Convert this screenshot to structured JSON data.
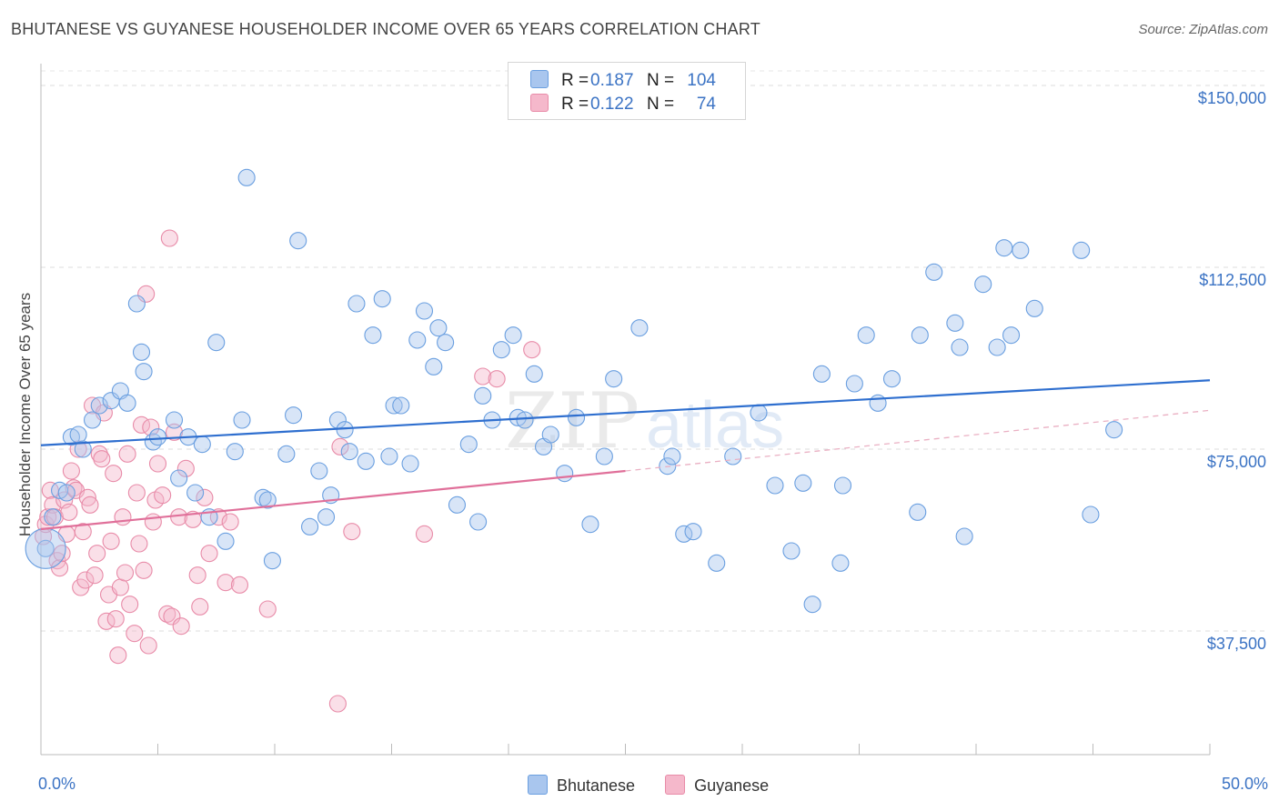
{
  "title": "BHUTANESE VS GUYANESE HOUSEHOLDER INCOME OVER 65 YEARS CORRELATION CHART",
  "source": "Source: ZipAtlas.com",
  "watermark": {
    "zip": "ZIP",
    "atlas": "atlas"
  },
  "legend_top": [
    {
      "r_label": "R =",
      "r_value": "0.187",
      "n_label": "N =",
      "n_value": "104",
      "color": "#a9c6ee"
    },
    {
      "r_label": "R =",
      "r_value": "0.122",
      "n_label": "N =",
      "n_value": "74",
      "color": "#f5b8cb"
    }
  ],
  "legend_bottom": [
    {
      "label": "Bhutanese",
      "color": "#a9c6ee"
    },
    {
      "label": "Guyanese",
      "color": "#f5b8cb"
    }
  ],
  "chart_data": {
    "type": "scatter",
    "title": "BHUTANESE VS GUYANESE HOUSEHOLDER INCOME OVER 65 YEARS CORRELATION CHART",
    "xlabel": "",
    "ylabel": "Householder Income Over 65 years",
    "xlim": [
      0,
      50
    ],
    "ylim": [
      12000,
      156000
    ],
    "x_tick_labels": [
      "0.0%",
      "50.0%"
    ],
    "y_ticks": [
      37500,
      75000,
      112500,
      150000
    ],
    "y_tick_labels": [
      "$37,500",
      "$75,000",
      "$112,500",
      "$150,000"
    ],
    "grid": true,
    "legend_placement": "top-center and bottom",
    "series": [
      {
        "name": "Bhutanese",
        "color": "#6a9fe0",
        "fill": "#a9c6ee",
        "trend": {
          "x": [
            0,
            50
          ],
          "y": [
            75800,
            89200
          ],
          "color": "#2f6fcf"
        },
        "points": [
          [
            0.2,
            54500
          ],
          [
            0.5,
            61000
          ],
          [
            0.8,
            66500
          ],
          [
            1.1,
            66000
          ],
          [
            1.3,
            77500
          ],
          [
            1.6,
            78000
          ],
          [
            1.8,
            75000
          ],
          [
            2.2,
            81000
          ],
          [
            2.5,
            84000
          ],
          [
            3.0,
            85000
          ],
          [
            3.4,
            87000
          ],
          [
            3.7,
            84500
          ],
          [
            4.1,
            105000
          ],
          [
            4.3,
            95000
          ],
          [
            4.4,
            91000
          ],
          [
            4.8,
            76500
          ],
          [
            5.0,
            77500
          ],
          [
            5.7,
            81000
          ],
          [
            5.9,
            69000
          ],
          [
            6.3,
            77500
          ],
          [
            6.6,
            66000
          ],
          [
            6.9,
            76000
          ],
          [
            7.2,
            61000
          ],
          [
            7.5,
            97000
          ],
          [
            7.9,
            56000
          ],
          [
            8.3,
            74500
          ],
          [
            8.6,
            81000
          ],
          [
            8.8,
            131000
          ],
          [
            9.5,
            65000
          ],
          [
            9.7,
            64500
          ],
          [
            9.9,
            52000
          ],
          [
            10.5,
            74000
          ],
          [
            10.8,
            82000
          ],
          [
            11.0,
            118000
          ],
          [
            11.5,
            59000
          ],
          [
            11.9,
            70500
          ],
          [
            12.2,
            61000
          ],
          [
            12.4,
            65500
          ],
          [
            12.7,
            81000
          ],
          [
            13.0,
            79000
          ],
          [
            13.2,
            74500
          ],
          [
            13.5,
            105000
          ],
          [
            13.9,
            72500
          ],
          [
            14.2,
            98500
          ],
          [
            14.6,
            106000
          ],
          [
            14.9,
            73500
          ],
          [
            15.1,
            84000
          ],
          [
            15.4,
            84000
          ],
          [
            15.8,
            72000
          ],
          [
            16.1,
            97500
          ],
          [
            16.4,
            103500
          ],
          [
            16.8,
            92000
          ],
          [
            17.0,
            100000
          ],
          [
            17.3,
            97000
          ],
          [
            17.8,
            63500
          ],
          [
            18.3,
            76000
          ],
          [
            18.7,
            60000
          ],
          [
            18.9,
            86000
          ],
          [
            19.3,
            81000
          ],
          [
            19.7,
            95500
          ],
          [
            20.2,
            98500
          ],
          [
            20.4,
            81500
          ],
          [
            20.7,
            81000
          ],
          [
            21.1,
            90500
          ],
          [
            21.5,
            75500
          ],
          [
            21.8,
            78000
          ],
          [
            22.4,
            70000
          ],
          [
            22.9,
            81500
          ],
          [
            23.5,
            59500
          ],
          [
            24.1,
            73500
          ],
          [
            24.5,
            89500
          ],
          [
            25.6,
            100000
          ],
          [
            26.8,
            71500
          ],
          [
            27.0,
            73500
          ],
          [
            27.5,
            57500
          ],
          [
            27.9,
            58000
          ],
          [
            28.9,
            51500
          ],
          [
            29.6,
            73500
          ],
          [
            30.7,
            82500
          ],
          [
            31.4,
            67500
          ],
          [
            32.1,
            54000
          ],
          [
            32.6,
            68000
          ],
          [
            33.0,
            43000
          ],
          [
            33.4,
            90500
          ],
          [
            34.2,
            51500
          ],
          [
            34.3,
            67500
          ],
          [
            34.8,
            88500
          ],
          [
            35.3,
            98500
          ],
          [
            35.8,
            84500
          ],
          [
            36.4,
            89500
          ],
          [
            37.5,
            62000
          ],
          [
            37.6,
            98500
          ],
          [
            38.2,
            111500
          ],
          [
            39.1,
            101000
          ],
          [
            39.3,
            96000
          ],
          [
            39.5,
            57000
          ],
          [
            40.3,
            109000
          ],
          [
            40.9,
            96000
          ],
          [
            41.5,
            98500
          ],
          [
            41.2,
            116500
          ],
          [
            41.9,
            116000
          ],
          [
            42.5,
            104000
          ],
          [
            44.5,
            116000
          ],
          [
            44.9,
            61500
          ],
          [
            45.9,
            79000
          ]
        ]
      },
      {
        "name": "Guyanese",
        "color": "#e88ba8",
        "fill": "#f5b8cb",
        "trend": {
          "x": [
            0,
            25
          ],
          "y": [
            58500,
            70500
          ],
          "color": "#e0709a"
        },
        "trend_dashed": {
          "x": [
            25,
            50
          ],
          "y": [
            70500,
            83000
          ]
        },
        "points": [
          [
            0.1,
            57000
          ],
          [
            0.2,
            59500
          ],
          [
            0.3,
            61000
          ],
          [
            0.4,
            66500
          ],
          [
            0.5,
            63500
          ],
          [
            0.6,
            61000
          ],
          [
            0.7,
            52000
          ],
          [
            0.8,
            50500
          ],
          [
            0.9,
            53500
          ],
          [
            1.0,
            64500
          ],
          [
            1.1,
            57500
          ],
          [
            1.2,
            62000
          ],
          [
            1.3,
            70500
          ],
          [
            1.4,
            67000
          ],
          [
            1.5,
            66500
          ],
          [
            1.6,
            75000
          ],
          [
            1.7,
            46500
          ],
          [
            1.8,
            58000
          ],
          [
            1.9,
            48000
          ],
          [
            2.0,
            65000
          ],
          [
            2.1,
            63500
          ],
          [
            2.2,
            84000
          ],
          [
            2.3,
            49000
          ],
          [
            2.4,
            53500
          ],
          [
            2.5,
            74000
          ],
          [
            2.6,
            73000
          ],
          [
            2.7,
            82500
          ],
          [
            2.8,
            39500
          ],
          [
            2.9,
            45000
          ],
          [
            3.0,
            56000
          ],
          [
            3.1,
            70000
          ],
          [
            3.2,
            40000
          ],
          [
            3.3,
            32500
          ],
          [
            3.4,
            46500
          ],
          [
            3.5,
            61000
          ],
          [
            3.6,
            49500
          ],
          [
            3.7,
            74000
          ],
          [
            3.8,
            43000
          ],
          [
            4.0,
            37000
          ],
          [
            4.1,
            66000
          ],
          [
            4.2,
            55500
          ],
          [
            4.3,
            80000
          ],
          [
            4.4,
            50000
          ],
          [
            4.5,
            107000
          ],
          [
            4.6,
            34500
          ],
          [
            4.7,
            79500
          ],
          [
            4.8,
            60000
          ],
          [
            4.9,
            64500
          ],
          [
            5.0,
            72000
          ],
          [
            5.2,
            65500
          ],
          [
            5.4,
            41000
          ],
          [
            5.5,
            118500
          ],
          [
            5.6,
            40500
          ],
          [
            5.7,
            78500
          ],
          [
            5.9,
            61000
          ],
          [
            6.0,
            38500
          ],
          [
            6.2,
            71000
          ],
          [
            6.5,
            60500
          ],
          [
            6.7,
            49000
          ],
          [
            6.8,
            42500
          ],
          [
            7.0,
            65000
          ],
          [
            7.2,
            53500
          ],
          [
            7.6,
            61000
          ],
          [
            7.9,
            47500
          ],
          [
            8.1,
            60000
          ],
          [
            9.7,
            42000
          ],
          [
            12.7,
            22500
          ],
          [
            12.8,
            75500
          ],
          [
            13.3,
            58000
          ],
          [
            16.4,
            57500
          ],
          [
            18.9,
            90000
          ],
          [
            21.0,
            95500
          ],
          [
            19.5,
            89500
          ],
          [
            8.5,
            47000
          ]
        ]
      }
    ]
  }
}
